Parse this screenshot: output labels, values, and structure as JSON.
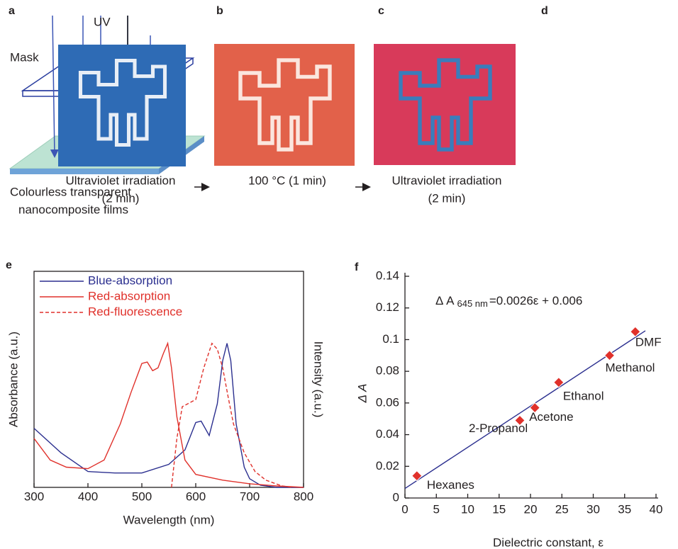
{
  "panels": {
    "a": {
      "label": "a",
      "uv": "UV",
      "mask": "Mask",
      "caption": [
        "Colourless transparent",
        "nanocomposite films"
      ]
    },
    "b": {
      "label": "b",
      "caption": [
        "Ultraviolet irradiation",
        "(2 min)"
      ]
    },
    "c": {
      "label": "c",
      "caption": [
        "100 °C  (1 min)"
      ]
    },
    "d": {
      "label": "d",
      "caption": [
        "Ultraviolet irradiation",
        "(2 min)"
      ]
    },
    "e": {
      "label": "e"
    },
    "f": {
      "label": "f"
    }
  },
  "chart_data": [
    {
      "type": "line",
      "xlabel": "Wavelength (nm)",
      "ylabel": "Absorbance (a.u.)",
      "y2label": "Intensity (a.u.)",
      "xlim": [
        300,
        800
      ],
      "xticks": [
        300,
        400,
        500,
        600,
        700,
        800
      ],
      "ylim": [
        0,
        1.5
      ],
      "legend": "upper left",
      "series": [
        {
          "name": "Blue-absorption",
          "color": "#2b2f8f",
          "style": "solid",
          "x": [
            300,
            350,
            400,
            450,
            500,
            550,
            580,
            600,
            610,
            625,
            640,
            650,
            658,
            665,
            675,
            690,
            700,
            720,
            750,
            800
          ],
          "values": [
            0.41,
            0.24,
            0.11,
            0.1,
            0.1,
            0.16,
            0.26,
            0.45,
            0.46,
            0.36,
            0.58,
            0.88,
            1.0,
            0.88,
            0.44,
            0.14,
            0.06,
            0.015,
            0,
            0
          ]
        },
        {
          "name": "Red-absorption",
          "color": "#e0312b",
          "style": "solid",
          "x": [
            300,
            330,
            360,
            400,
            430,
            460,
            480,
            500,
            510,
            520,
            530,
            540,
            548,
            555,
            565,
            580,
            600,
            650,
            700,
            750,
            800
          ],
          "values": [
            0.34,
            0.19,
            0.14,
            0.13,
            0.19,
            0.44,
            0.66,
            0.86,
            0.87,
            0.81,
            0.83,
            0.93,
            1.0,
            0.83,
            0.49,
            0.19,
            0.09,
            0.05,
            0.025,
            0.01,
            0
          ]
        },
        {
          "name": "Red-fluorescence",
          "color": "#e0312b",
          "style": "dashed",
          "x": [
            555,
            565,
            575,
            585,
            600,
            615,
            630,
            640,
            650,
            660,
            670,
            690,
            710,
            730,
            760,
            780
          ],
          "values": [
            0,
            0.34,
            0.56,
            0.58,
            0.61,
            0.83,
            1.0,
            0.96,
            0.83,
            0.63,
            0.44,
            0.24,
            0.11,
            0.05,
            0.01,
            0
          ]
        }
      ]
    },
    {
      "type": "scatter",
      "xlabel": "Dielectric constant, ε",
      "ylabel": "Δ A",
      "equation": [
        "Δ A",
        "645 nm",
        "=0.0026ε + 0.006"
      ],
      "xlim": [
        0,
        40
      ],
      "xticks": [
        0,
        5,
        10,
        15,
        20,
        25,
        30,
        35,
        40
      ],
      "ylim": [
        0,
        0.14
      ],
      "yticks": [
        0,
        0.02,
        0.04,
        0.06,
        0.08,
        0.1,
        0.12,
        0.14
      ],
      "color": "#e0312b",
      "fit_color": "#2b2f8f",
      "labels": [
        "Hexanes",
        "2-Propanol",
        "Acetone",
        "Ethanol",
        "Methanol",
        "DMF"
      ],
      "x": [
        1.9,
        18.3,
        20.7,
        24.5,
        32.6,
        36.7
      ],
      "values": [
        0.014,
        0.049,
        0.057,
        0.073,
        0.09,
        0.105
      ],
      "fit": {
        "x": [
          0,
          38.3
        ],
        "values": [
          0.006,
          0.1056
        ]
      }
    }
  ]
}
